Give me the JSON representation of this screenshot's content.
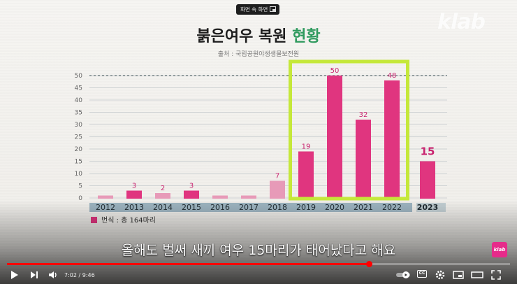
{
  "overlay": {
    "pip_label": "화면 속 화면",
    "brand": "klab",
    "corner_badge": "klab"
  },
  "chart_data": {
    "type": "bar",
    "title": "붉은여우 복원 현황",
    "title_plain": "붉은여우 복원 ",
    "title_highlight": "현황",
    "subtitle": "출처 : 국립공원야생생물보전원",
    "categories": [
      "2012",
      "2013",
      "2014",
      "2015",
      "2016",
      "2017",
      "2018",
      "2019",
      "2020",
      "2021",
      "2022",
      "2023"
    ],
    "values": [
      1,
      3,
      2,
      3,
      1,
      1,
      7,
      19,
      50,
      32,
      48,
      15
    ],
    "data_labels": [
      "",
      "3",
      "2",
      "3",
      "",
      "",
      "7",
      "19",
      "50",
      "32",
      "48",
      "15"
    ],
    "ylim": [
      0,
      50
    ],
    "yticks": [
      0,
      5,
      10,
      15,
      20,
      25,
      30,
      35,
      40,
      45,
      50
    ],
    "grid": true,
    "reference_line": 50,
    "highlight_categories": [
      "2019",
      "2020",
      "2021",
      "2022"
    ],
    "legend": "번식 : 총 164마리",
    "legend_position": "bottom-left",
    "colors": {
      "bar": "#e0357f",
      "bar_faded": "#e79ab8",
      "highlight_box": "#c5e83a",
      "label": "#c9236f",
      "axis_band": "#9db4c0"
    }
  },
  "subtitle_caption": "올해도 벌써 새끼 여우 15마리가 태어났다고 해요",
  "player": {
    "time_current": "7:02",
    "time_total": "9:46",
    "time_display": "7:02 / 9:46",
    "progress": 0.72,
    "volume": 0.7,
    "accent": "#ff0000",
    "icons": [
      "play-icon",
      "next-icon",
      "volume-icon",
      "autoplay-toggle-icon",
      "subtitles-icon",
      "settings-icon",
      "miniplayer-icon",
      "theater-icon",
      "fullscreen-icon"
    ]
  }
}
